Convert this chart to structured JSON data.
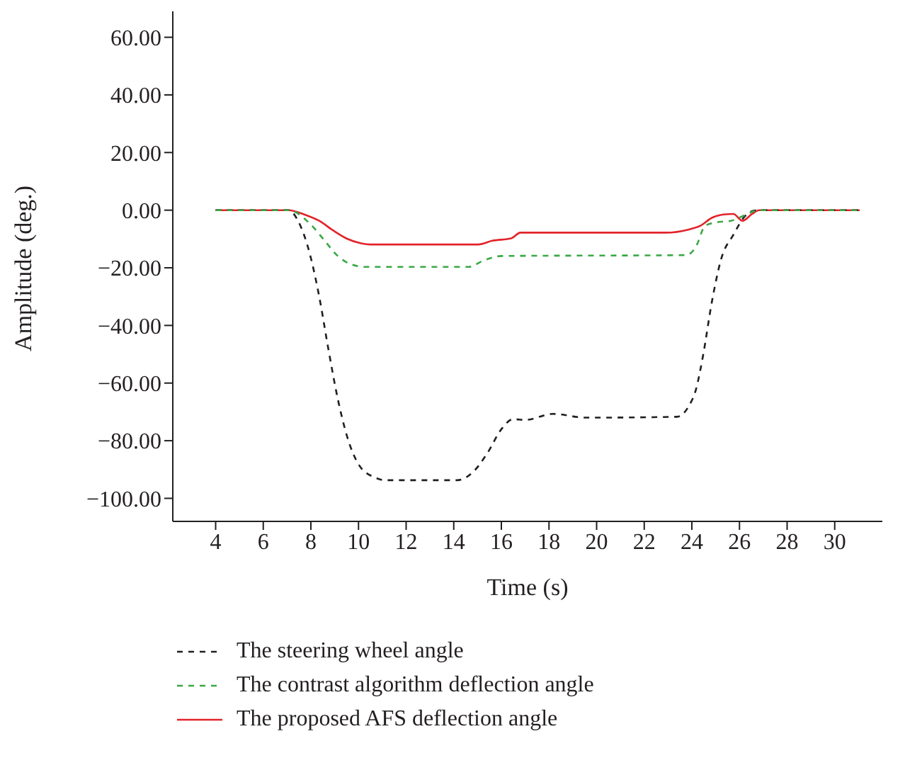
{
  "chart_data": {
    "type": "line",
    "xlabel": "Time (s)",
    "ylabel": "Amplitude (deg.)",
    "xlim": [
      2.2,
      32
    ],
    "xticks": [
      4,
      6,
      8,
      10,
      12,
      14,
      16,
      18,
      20,
      22,
      24,
      26,
      28,
      30
    ],
    "ylim": [
      -108,
      69
    ],
    "yticks": [
      {
        "value": 60,
        "label": "60.00"
      },
      {
        "value": 40,
        "label": "40.00"
      },
      {
        "value": 20,
        "label": "20.00"
      },
      {
        "value": 0,
        "label": "0.00"
      },
      {
        "value": -20,
        "label": "−20.00"
      },
      {
        "value": -40,
        "label": "−40.00"
      },
      {
        "value": -60,
        "label": "−60.00"
      },
      {
        "value": -80,
        "label": "−80.00"
      },
      {
        "value": -100,
        "label": "−100.00"
      }
    ],
    "grid": false,
    "legend": "bottom",
    "marker": "none",
    "series": [
      {
        "name": "The steering wheel angle",
        "color": "#231f20",
        "line_style": "dashed",
        "x": [
          4.0,
          7.07,
          7.46,
          7.95,
          8.35,
          8.73,
          9.13,
          9.52,
          10.01,
          10.7,
          11.1,
          14.14,
          14.83,
          15.42,
          16.0,
          16.5,
          17.0,
          18.17,
          19.55,
          23.38,
          23.87,
          24.17,
          24.46,
          24.85,
          25.24,
          25.74,
          26.23,
          26.72,
          31.05
        ],
        "values": [
          0,
          0,
          -3.7,
          -15,
          -30,
          -48,
          -65.5,
          -78.5,
          -88.3,
          -92.8,
          -93.7,
          -93.7,
          -90.7,
          -84.2,
          -76,
          -72.5,
          -72.8,
          -70.7,
          -72,
          -71.7,
          -68,
          -62.3,
          -50.9,
          -31.4,
          -16.7,
          -8.6,
          -2.1,
          0,
          0
        ]
      },
      {
        "name": "The contrast algorithm deflection angle",
        "color": "#3aa845",
        "line_style": "dashed",
        "x": [
          4.0,
          7.07,
          7.95,
          8.54,
          9.13,
          9.72,
          10.3,
          14.63,
          15.22,
          16.0,
          23.77,
          24.17,
          24.56,
          25.05,
          25.64,
          26.13,
          26.82,
          31.05
        ],
        "values": [
          0,
          0,
          -4.6,
          -10.2,
          -15.9,
          -18.9,
          -19.7,
          -19.7,
          -17.6,
          -15.9,
          -15.6,
          -12.7,
          -5.4,
          -4.2,
          -3.7,
          -2.1,
          0,
          0
        ]
      },
      {
        "name": "The proposed AFS deflection angle",
        "color": "#e2232a",
        "line_style": "solid",
        "x": [
          4.0,
          7.07,
          7.76,
          8.35,
          8.93,
          9.52,
          10.11,
          10.5,
          15.03,
          15.62,
          16.41,
          16.8,
          22.9,
          23.87,
          24.36,
          24.85,
          25.34,
          25.74,
          26.13,
          26.53,
          26.82,
          31.05
        ],
        "values": [
          0,
          0,
          -1.6,
          -3.7,
          -7,
          -9.9,
          -11.5,
          -11.9,
          -11.9,
          -10.6,
          -9.8,
          -7.8,
          -7.8,
          -6.7,
          -5.4,
          -2.6,
          -1.5,
          -1.3,
          -3.7,
          -1.3,
          0,
          0
        ]
      }
    ]
  }
}
